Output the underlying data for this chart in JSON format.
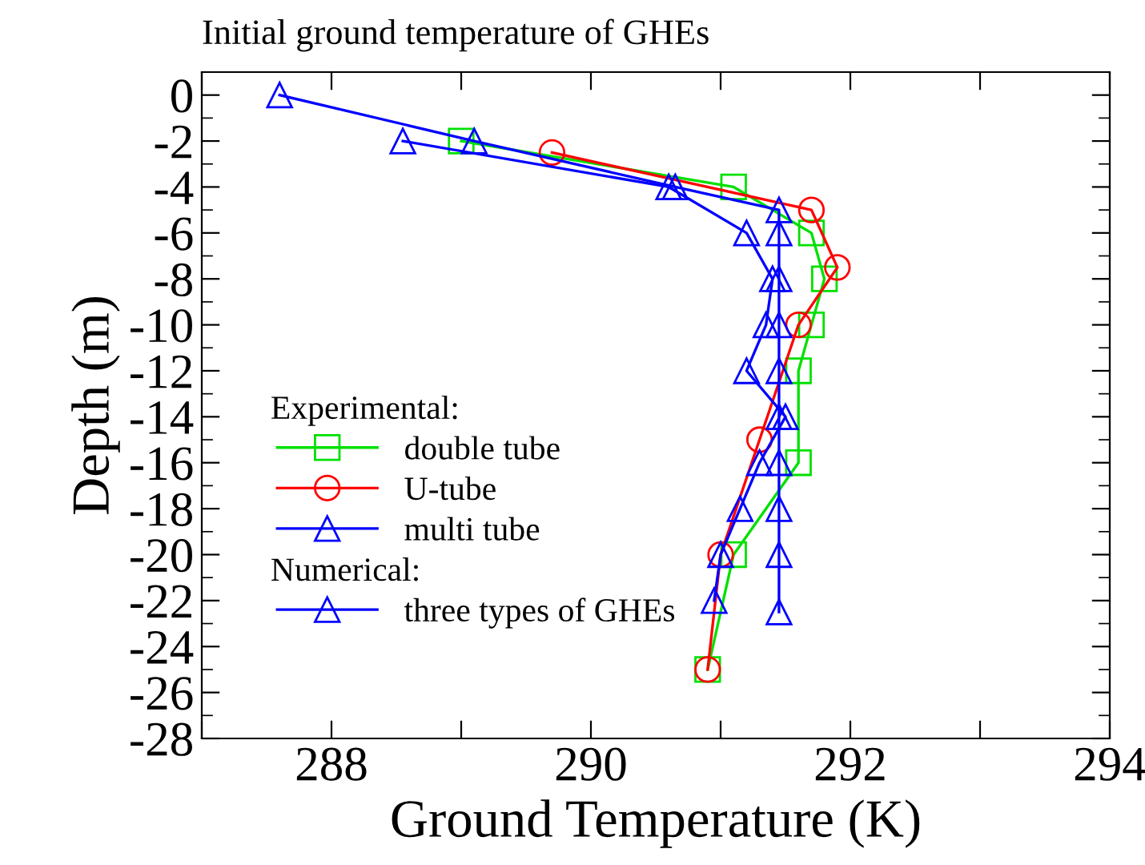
{
  "chart_data": {
    "type": "line",
    "title": "Initial ground temperature of GHEs",
    "xlabel": "Ground Temperature (K)",
    "ylabel": "Depth (m)",
    "legend_title": "Experimental:",
    "annotations": [
      "Numerical:"
    ],
    "xlim": [
      287,
      294
    ],
    "ylim": [
      -28,
      1
    ],
    "xticks": [
      {
        "value": 287,
        "label": null
      },
      288,
      {
        "value": 289,
        "label": null
      },
      290,
      {
        "value": 291,
        "label": null
      },
      292,
      {
        "value": 293,
        "label": null
      },
      294
    ],
    "yticks": [
      0,
      -2,
      -4,
      -6,
      -8,
      -10,
      -12,
      -14,
      -16,
      -18,
      -20,
      -22,
      -24,
      -26,
      -28
    ],
    "grid": false,
    "legend": "bottom left",
    "series": [
      {
        "name": "double tube",
        "color": "#00e000",
        "marker": "square",
        "x": [
          289.0,
          291.1,
          291.7,
          291.8,
          291.7,
          291.6,
          291.6,
          291.1,
          290.9
        ],
        "values": [
          -2,
          -4,
          -6,
          -8,
          -10,
          -12,
          -16,
          -20,
          -25
        ]
      },
      {
        "name": "U-tube",
        "color": "#ff0000",
        "marker": "circle",
        "x": [
          289.7,
          291.7,
          291.9,
          291.6,
          291.3,
          291.0,
          290.9
        ],
        "values": [
          -2.5,
          -5,
          -7.5,
          -10,
          -15,
          -20,
          -25
        ]
      },
      {
        "name": "multi tube",
        "color": "#0000ff",
        "marker": "triangle",
        "x": [
          288.55,
          290.6,
          291.2,
          291.4,
          291.35,
          291.2,
          291.5,
          291.3,
          291.15,
          291.0,
          290.95
        ],
        "values": [
          -2,
          -4,
          -6,
          -8,
          -10,
          -12,
          -14,
          -16,
          -18,
          -20,
          -22
        ]
      },
      {
        "name": "three types of GHEs",
        "color": "#0000ff",
        "marker": "triangle",
        "x": [
          287.6,
          289.1,
          290.65,
          291.45,
          291.45,
          291.45,
          291.45,
          291.45,
          291.45,
          291.45,
          291.45,
          291.45,
          291.45
        ],
        "values": [
          0,
          -2,
          -4,
          -5,
          -6,
          -8,
          -10,
          -12,
          -14,
          -16,
          -18,
          -20,
          -22.5
        ]
      }
    ]
  }
}
